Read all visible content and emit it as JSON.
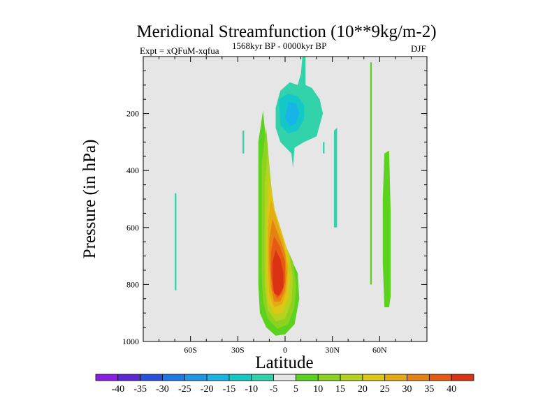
{
  "chart_data": {
    "type": "contour",
    "title": "Meridional Streamfunction (10**9kg/m-2)",
    "experiment_label": "Expt = xQFuM-xqfua",
    "period_label": "1568kyr BP - 0000kyr BP",
    "season_label": "DJF",
    "xlabel": "Latitude",
    "ylabel": "Pressure (in hPa)",
    "xlim": [
      -90,
      90
    ],
    "ylim": [
      1000,
      0
    ],
    "x_ticks": [
      {
        "value": -60,
        "label": "60S"
      },
      {
        "value": -30,
        "label": "30S"
      },
      {
        "value": 0,
        "label": "0"
      },
      {
        "value": 30,
        "label": "30N"
      },
      {
        "value": 60,
        "label": "60N"
      }
    ],
    "y_ticks": [
      {
        "value": 200,
        "label": "200"
      },
      {
        "value": 400,
        "label": "400"
      },
      {
        "value": 600,
        "label": "600"
      },
      {
        "value": 800,
        "label": "800"
      },
      {
        "value": 1000,
        "label": "1000"
      }
    ],
    "background_color": "#e6e6e6",
    "colorbar": {
      "levels": [
        "-40",
        "-35",
        "-30",
        "-25",
        "-20",
        "-15",
        "-10",
        "-5",
        "5",
        "10",
        "15",
        "20",
        "25",
        "30",
        "35",
        "40"
      ],
      "colors": [
        "#8a1ee6",
        "#5a28d2",
        "#2850dc",
        "#1e78e6",
        "#1e96e6",
        "#19b4e6",
        "#14c8c8",
        "#32d2aa",
        "#e6e6e6",
        "#5ad21e",
        "#8cd21e",
        "#b4d21e",
        "#dcc814",
        "#e6aa14",
        "#e68214",
        "#e65a14",
        "#dc3214"
      ]
    },
    "regions": [
      {
        "name": "tropical-positive-cell",
        "levels": [
          {
            "value": 5,
            "color": "#5ad21e",
            "pts": [
              [
                -14,
                190
              ],
              [
                -12,
                300
              ],
              [
                -10,
                450
              ],
              [
                -8,
                560
              ],
              [
                -4,
                640
              ],
              [
                3,
                700
              ],
              [
                8,
                760
              ],
              [
                9,
                850
              ],
              [
                6,
                940
              ],
              [
                0,
                975
              ],
              [
                -6,
                980
              ],
              [
                -12,
                950
              ],
              [
                -16,
                900
              ],
              [
                -17,
                800
              ],
              [
                -17,
                650
              ],
              [
                -17,
                450
              ],
              [
                -17,
                300
              ]
            ]
          },
          {
            "value": 10,
            "color": "#8cd21e",
            "pts": [
              [
                -12,
                250
              ],
              [
                -10,
                380
              ],
              [
                -8,
                500
              ],
              [
                -5,
                590
              ],
              [
                0,
                660
              ],
              [
                5,
                720
              ],
              [
                7,
                800
              ],
              [
                6,
                880
              ],
              [
                2,
                940
              ],
              [
                -5,
                955
              ],
              [
                -11,
                920
              ],
              [
                -14,
                860
              ],
              [
                -15,
                750
              ],
              [
                -15,
                550
              ],
              [
                -15,
                380
              ]
            ]
          },
          {
            "value": 15,
            "color": "#b4d21e",
            "pts": [
              [
                -11,
                330
              ],
              [
                -9,
                450
              ],
              [
                -6,
                560
              ],
              [
                -2,
                630
              ],
              [
                3,
                700
              ],
              [
                5,
                780
              ],
              [
                4,
                860
              ],
              [
                0,
                920
              ],
              [
                -6,
                930
              ],
              [
                -11,
                890
              ],
              [
                -13,
                800
              ],
              [
                -13,
                620
              ],
              [
                -13,
                450
              ]
            ]
          },
          {
            "value": 20,
            "color": "#dcc814",
            "pts": [
              [
                -10,
                420
              ],
              [
                -7,
                530
              ],
              [
                -3,
                600
              ],
              [
                2,
                690
              ],
              [
                3,
                780
              ],
              [
                2,
                850
              ],
              [
                -2,
                900
              ],
              [
                -7,
                905
              ],
              [
                -11,
                860
              ],
              [
                -12,
                760
              ],
              [
                -12,
                600
              ]
            ]
          },
          {
            "value": 25,
            "color": "#e6aa14",
            "pts": [
              [
                -9,
                500
              ],
              [
                -5,
                580
              ],
              [
                -1,
                650
              ],
              [
                2,
                740
              ],
              [
                1,
                820
              ],
              [
                -2,
                870
              ],
              [
                -7,
                880
              ],
              [
                -10,
                830
              ],
              [
                -11,
                720
              ],
              [
                -11,
                600
              ]
            ]
          },
          {
            "value": 30,
            "color": "#e68214",
            "pts": [
              [
                -8,
                570
              ],
              [
                -4,
                630
              ],
              [
                0,
                690
              ],
              [
                1,
                760
              ],
              [
                0,
                820
              ],
              [
                -3,
                860
              ],
              [
                -7,
                860
              ],
              [
                -9,
                810
              ],
              [
                -10,
                720
              ],
              [
                -10,
                640
              ]
            ]
          },
          {
            "value": 35,
            "color": "#e65a14",
            "pts": [
              [
                -7,
                630
              ],
              [
                -3,
                670
              ],
              [
                0,
                720
              ],
              [
                0,
                790
              ],
              [
                -2,
                830
              ],
              [
                -5,
                850
              ],
              [
                -8,
                820
              ],
              [
                -9,
                760
              ],
              [
                -9,
                690
              ]
            ]
          },
          {
            "value": 40,
            "color": "#dc3214",
            "pts": [
              [
                -6,
                680
              ],
              [
                -3,
                710
              ],
              [
                -1,
                760
              ],
              [
                -1,
                810
              ],
              [
                -4,
                840
              ],
              [
                -7,
                830
              ],
              [
                -8,
                780
              ],
              [
                -8,
                720
              ]
            ]
          }
        ]
      },
      {
        "name": "nh-upper-negative-cell",
        "levels": [
          {
            "value": -5,
            "color": "#32d2aa",
            "pts": [
              [
                11,
                0
              ],
              [
                13,
                0
              ],
              [
                13,
                100
              ],
              [
                17,
                110
              ],
              [
                22,
                150
              ],
              [
                24,
                200
              ],
              [
                20,
                280
              ],
              [
                12,
                300
              ],
              [
                6,
                320
              ],
              [
                5,
                390
              ],
              [
                4,
                340
              ],
              [
                -3,
                300
              ],
              [
                -6,
                250
              ],
              [
                -6,
                180
              ],
              [
                -3,
                120
              ],
              [
                3,
                90
              ],
              [
                8,
                100
              ],
              [
                10,
                60
              ]
            ]
          },
          {
            "value": -10,
            "color": "#14c8c8",
            "pts": [
              [
                -4,
                150
              ],
              [
                2,
                130
              ],
              [
                8,
                140
              ],
              [
                12,
                170
              ],
              [
                12,
                220
              ],
              [
                8,
                260
              ],
              [
                2,
                270
              ],
              [
                -3,
                240
              ]
            ]
          },
          {
            "value": -15,
            "color": "#19b4e6",
            "pts": [
              [
                2,
                160
              ],
              [
                7,
                165
              ],
              [
                9,
                200
              ],
              [
                7,
                235
              ],
              [
                3,
                245
              ],
              [
                0,
                215
              ]
            ]
          }
        ]
      },
      {
        "name": "sh-midlat-negative-strip",
        "levels": [
          {
            "value": -5,
            "color": "#32d2aa",
            "pts": [
              [
                -70,
                480
              ],
              [
                -69,
                480
              ],
              [
                -69,
                820
              ],
              [
                -70,
                820
              ]
            ]
          }
        ]
      },
      {
        "name": "sh-small-negative-patch",
        "levels": [
          {
            "value": -5,
            "color": "#32d2aa",
            "pts": [
              [
                -27,
                260
              ],
              [
                -26,
                260
              ],
              [
                -26,
                340
              ],
              [
                -27,
                340
              ]
            ]
          }
        ]
      },
      {
        "name": "nh-subtropical-negative-strip",
        "levels": [
          {
            "value": -5,
            "color": "#32d2aa",
            "pts": [
              [
                31,
                260
              ],
              [
                33,
                250
              ],
              [
                33,
                600
              ],
              [
                31,
                600
              ]
            ]
          }
        ]
      },
      {
        "name": "nh-small-negative-patch",
        "levels": [
          {
            "value": -5,
            "color": "#32d2aa",
            "pts": [
              [
                24,
                300
              ],
              [
                25,
                300
              ],
              [
                25,
                340
              ],
              [
                24,
                340
              ]
            ]
          }
        ]
      },
      {
        "name": "nh-thin-positive-strip",
        "levels": [
          {
            "value": 5,
            "color": "#5ad21e",
            "pts": [
              [
                54,
                20
              ],
              [
                55,
                20
              ],
              [
                55,
                800
              ],
              [
                54,
                800
              ]
            ]
          }
        ]
      },
      {
        "name": "nh-highlat-positive-strip",
        "levels": [
          {
            "value": 5,
            "color": "#5ad21e",
            "pts": [
              [
                63,
                340
              ],
              [
                66,
                330
              ],
              [
                67,
                550
              ],
              [
                67,
                840
              ],
              [
                66,
                880
              ],
              [
                63,
                880
              ],
              [
                62,
                720
              ],
              [
                62,
                500
              ]
            ]
          }
        ]
      }
    ]
  }
}
